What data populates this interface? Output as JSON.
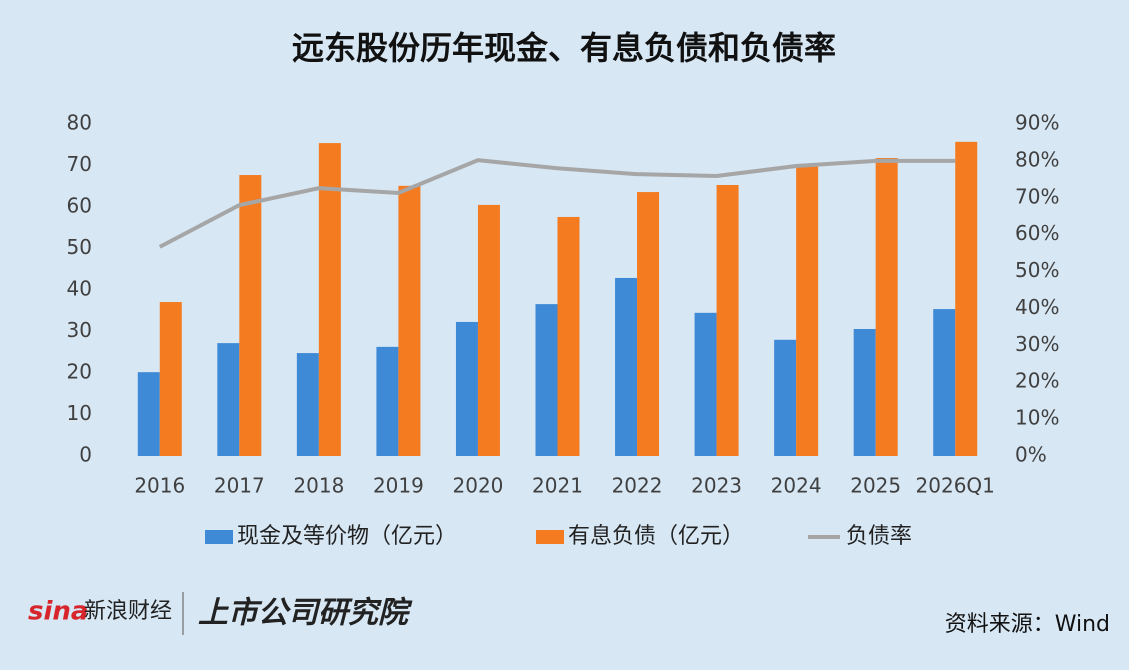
{
  "chart_data": {
    "type": "bar",
    "title": "远东股份历年现金、有息负债和负债率",
    "categories": [
      "2016",
      "2017",
      "2018",
      "2019",
      "2020",
      "2021",
      "2022",
      "2023",
      "2024",
      "2025",
      "2026Q1"
    ],
    "series": [
      {
        "name": "现金及等价物（亿元）",
        "type": "bar",
        "color": "#3f8ad6",
        "values": [
          20.2,
          27.2,
          24.8,
          26.3,
          32.3,
          36.6,
          42.9,
          34.5,
          28.0,
          30.6,
          35.4
        ]
      },
      {
        "name": "有息负债（亿元）",
        "type": "bar",
        "color": "#f47b20",
        "values": [
          37.1,
          67.7,
          75.4,
          65.1,
          60.5,
          57.6,
          63.6,
          65.3,
          70.1,
          71.8,
          75.7
        ]
      },
      {
        "name": "负债率",
        "type": "line",
        "axis": "y2",
        "color": "#a6a6a6",
        "values": [
          56.7,
          68.0,
          72.6,
          71.3,
          80.2,
          78.0,
          76.4,
          75.9,
          78.6,
          80.0,
          80.0
        ]
      }
    ],
    "ylim": [
      0,
      80
    ],
    "yticks": [
      0,
      10,
      20,
      30,
      40,
      50,
      60,
      70,
      80
    ],
    "y2lim": [
      0,
      90
    ],
    "y2ticks": [
      {
        "value": 0,
        "label": "0%"
      },
      {
        "value": 10,
        "label": "10%"
      },
      {
        "value": 20,
        "label": "20%"
      },
      {
        "value": 30,
        "label": "30%"
      },
      {
        "value": 40,
        "label": "40%"
      },
      {
        "value": 50,
        "label": "50%"
      },
      {
        "value": 60,
        "label": "60%"
      },
      {
        "value": 70,
        "label": "70%"
      },
      {
        "value": 80,
        "label": "80%"
      },
      {
        "value": 90,
        "label": "90%"
      }
    ],
    "grid": false,
    "legend": "bottom"
  },
  "footer": {
    "brand": "sina",
    "brand_name": "新浪财经",
    "institute": "上市公司研究院",
    "source": "资料来源：Wind"
  }
}
